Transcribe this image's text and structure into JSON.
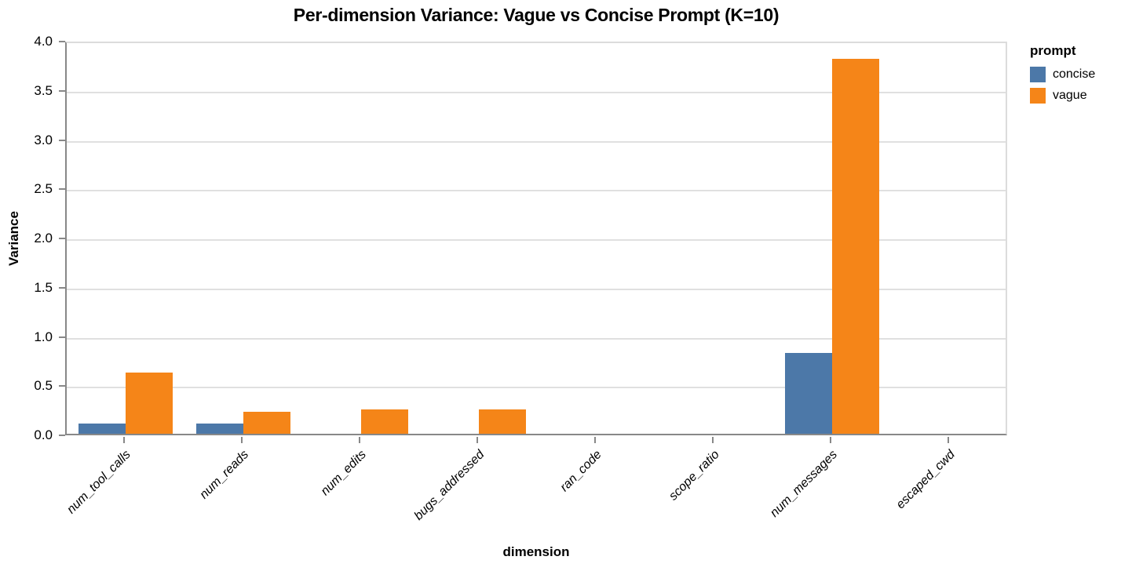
{
  "title": "Per-dimension Variance: Vague vs Concise Prompt (K=10)",
  "chart_data": {
    "type": "bar",
    "title": "Per-dimension Variance: Vague vs Concise Prompt (K=10)",
    "xlabel": "dimension",
    "ylabel": "Variance",
    "legend_title": "prompt",
    "legend_position": "right-top",
    "grid": true,
    "ylim": [
      0,
      4
    ],
    "yticks": [
      0,
      0.5,
      1,
      1.5,
      2,
      2.5,
      3,
      3.5,
      4
    ],
    "categories": [
      "num_tool_calls",
      "num_reads",
      "num_edits",
      "bugs_addressed",
      "ran_code",
      "scope_ratio",
      "num_messages",
      "escaped_cwd"
    ],
    "series": [
      {
        "name": "concise",
        "color": "#4c78a8",
        "values": [
          0.1,
          0.1,
          0,
          0,
          0,
          0,
          0.82,
          0
        ]
      },
      {
        "name": "vague",
        "color": "#f58518",
        "values": [
          0.62,
          0.22,
          0.25,
          0.25,
          0,
          0,
          3.81,
          0
        ]
      }
    ],
    "colors": {
      "axis_spine": "#888888",
      "gridline": "#e0e0e0"
    }
  }
}
